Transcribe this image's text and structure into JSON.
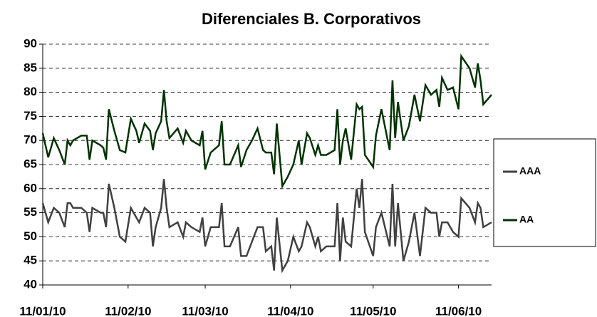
{
  "chart_data": {
    "type": "line",
    "title": "Diferenciales B. Corporativos",
    "x": [
      "2010-01-11",
      "2010-01-13",
      "2010-01-15",
      "2010-01-17",
      "2010-01-19",
      "2010-01-20",
      "2010-01-21",
      "2010-01-22",
      "2010-01-25",
      "2010-01-27",
      "2010-01-28",
      "2010-01-29",
      "2010-02-01",
      "2010-02-02",
      "2010-02-03",
      "2010-02-04",
      "2010-02-06",
      "2010-02-08",
      "2010-02-10",
      "2010-02-12",
      "2010-02-14",
      "2010-02-15",
      "2010-02-17",
      "2010-02-19",
      "2010-02-20",
      "2010-02-21",
      "2010-02-23",
      "2010-02-24",
      "2010-02-25",
      "2010-02-26",
      "2010-03-01",
      "2010-03-03",
      "2010-03-04",
      "2010-03-06",
      "2010-03-09",
      "2010-03-10",
      "2010-03-11",
      "2010-03-13",
      "2010-03-16",
      "2010-03-17",
      "2010-03-18",
      "2010-03-20",
      "2010-03-23",
      "2010-03-24",
      "2010-03-26",
      "2010-03-28",
      "2010-03-30",
      "2010-04-01",
      "2010-04-02",
      "2010-04-04",
      "2010-04-05",
      "2010-04-06",
      "2010-04-08",
      "2010-04-10",
      "2010-04-12",
      "2010-04-14",
      "2010-04-15",
      "2010-04-17",
      "2010-04-18",
      "2010-04-20",
      "2010-04-21",
      "2010-04-22",
      "2010-04-24",
      "2010-04-27",
      "2010-04-28",
      "2010-04-29",
      "2010-04-30",
      "2010-05-01",
      "2010-05-03",
      "2010-05-05",
      "2010-05-06",
      "2010-05-07",
      "2010-05-08",
      "2010-05-11",
      "2010-05-12",
      "2010-05-14",
      "2010-05-17",
      "2010-05-18",
      "2010-05-19",
      "2010-05-20",
      "2010-05-22",
      "2010-05-24",
      "2010-05-26",
      "2010-05-28",
      "2010-05-30",
      "2010-06-01",
      "2010-06-03",
      "2010-06-04",
      "2010-06-05",
      "2010-06-07",
      "2010-06-09",
      "2010-06-11",
      "2010-06-12",
      "2010-06-15",
      "2010-06-17",
      "2010-06-18",
      "2010-06-19",
      "2010-06-20",
      "2010-06-23"
    ],
    "series": [
      {
        "name": "AAA",
        "color": "#404040",
        "values": [
          57,
          53,
          56,
          55,
          52,
          57,
          57,
          56,
          56,
          55,
          51,
          56,
          55,
          55,
          52,
          61,
          56,
          50,
          49,
          56,
          54,
          53,
          56,
          55,
          48,
          52,
          56,
          62,
          56,
          52,
          53,
          50,
          53,
          52,
          51,
          54,
          48,
          52,
          52,
          57,
          48,
          48,
          52,
          46,
          46,
          49,
          52,
          52,
          47,
          48,
          43,
          54,
          43,
          45,
          50,
          47,
          48,
          53,
          52,
          48,
          50,
          47,
          48,
          48,
          57,
          45,
          54,
          49,
          48,
          60,
          56,
          62,
          51,
          46,
          52,
          55,
          48,
          61,
          48,
          57,
          45,
          49,
          55,
          46,
          56,
          55,
          55,
          50,
          53,
          53,
          51,
          50,
          58,
          56,
          53,
          57,
          56,
          52,
          53
        ]
      },
      {
        "name": "AA",
        "color": "#003300",
        "values": [
          71.5,
          66.5,
          70.5,
          68,
          65,
          70,
          69,
          70,
          71,
          71,
          66,
          70,
          69,
          68.5,
          66,
          76.5,
          72,
          68,
          67.5,
          74.5,
          72,
          69.5,
          73.5,
          72,
          68,
          71.5,
          74,
          80.5,
          74,
          70.5,
          72.5,
          69.5,
          72,
          70,
          69,
          72,
          64,
          67.5,
          69,
          74,
          65,
          65,
          69,
          64.5,
          68,
          70,
          72.5,
          68,
          67.5,
          67.5,
          63,
          73.5,
          60.5,
          62.5,
          65,
          70,
          65,
          71.5,
          70.5,
          67,
          69,
          67,
          67,
          68,
          76.5,
          65,
          70,
          72.5,
          66,
          77.5,
          76.5,
          77,
          67,
          64.5,
          71,
          76.5,
          68,
          82.5,
          70.5,
          78,
          70,
          73,
          79.5,
          74,
          81.5,
          79.5,
          80.5,
          77,
          83,
          80.5,
          81,
          76.5,
          87.5,
          85,
          81,
          86,
          82.5,
          77.5,
          79.5
        ]
      }
    ],
    "xlim": [
      "2010-01-11",
      "2010-06-23"
    ],
    "xticks": [
      {
        "value": "2010-01-11",
        "label": "11/01/10"
      },
      {
        "value": "2010-02-11",
        "label": "11/02/10"
      },
      {
        "value": "2010-03-11",
        "label": "11/03/10"
      },
      {
        "value": "2010-04-11",
        "label": "11/04/10"
      },
      {
        "value": "2010-05-11",
        "label": "11/05/10"
      },
      {
        "value": "2010-06-11",
        "label": "11/06/10"
      }
    ],
    "ylim": [
      40,
      90
    ],
    "yticks": [
      40,
      45,
      50,
      55,
      60,
      65,
      70,
      75,
      80,
      85,
      90
    ],
    "grid": true,
    "legend": "right"
  }
}
